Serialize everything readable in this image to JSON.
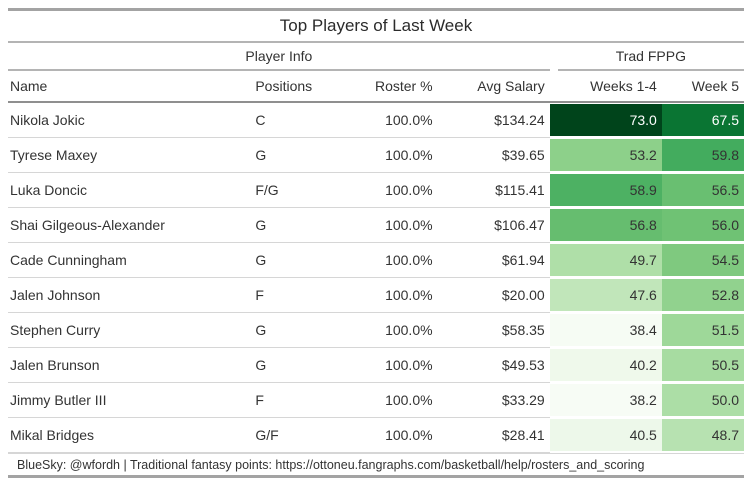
{
  "title": "Top Players of Last Week",
  "spanners": {
    "player_info": "Player Info",
    "trad_fppg": "Trad FPPG"
  },
  "columns": {
    "name": "Name",
    "positions": "Positions",
    "roster_pct": "Roster %",
    "avg_salary": "Avg Salary",
    "weeks_1_4": "Weeks 1-4",
    "week_5": "Week 5"
  },
  "rows": [
    {
      "name": "Nikola Jokic",
      "positions": "C",
      "roster_pct": "100.0%",
      "avg_salary": "$134.24",
      "weeks_1_4": "73.0",
      "week_5": "67.5",
      "weeks_1_4_bg": "#00441b",
      "weeks_1_4_fg": "#ffffff",
      "week_5_bg": "#0a7533",
      "week_5_fg": "#ffffff"
    },
    {
      "name": "Tyrese Maxey",
      "positions": "G",
      "roster_pct": "100.0%",
      "avg_salary": "$39.65",
      "weeks_1_4": "53.2",
      "week_5": "59.8",
      "weeks_1_4_bg": "#8dd08a",
      "weeks_1_4_fg": "#333333",
      "week_5_bg": "#43ac5e",
      "week_5_fg": "#333333"
    },
    {
      "name": "Luka Doncic",
      "positions": "F/G",
      "roster_pct": "100.0%",
      "avg_salary": "$115.41",
      "weeks_1_4": "58.9",
      "week_5": "56.5",
      "weeks_1_4_bg": "#4db163",
      "weeks_1_4_fg": "#333333",
      "week_5_bg": "#69bf71",
      "week_5_fg": "#333333"
    },
    {
      "name": "Shai Gilgeous-Alexander",
      "positions": "G",
      "roster_pct": "100.0%",
      "avg_salary": "$106.47",
      "weeks_1_4": "56.8",
      "week_5": "56.0",
      "weeks_1_4_bg": "#66bd6f",
      "weeks_1_4_fg": "#333333",
      "week_5_bg": "#6fc274",
      "week_5_fg": "#333333"
    },
    {
      "name": "Cade Cunningham",
      "positions": "G",
      "roster_pct": "100.0%",
      "avg_salary": "$61.94",
      "weeks_1_4": "49.7",
      "week_5": "54.5",
      "weeks_1_4_bg": "#afdfa8",
      "weeks_1_4_fg": "#333333",
      "week_5_bg": "#7fc97f",
      "week_5_fg": "#333333"
    },
    {
      "name": "Jalen Johnson",
      "positions": "F",
      "roster_pct": "100.0%",
      "avg_salary": "$20.00",
      "weeks_1_4": "47.6",
      "week_5": "52.8",
      "weeks_1_4_bg": "#c1e6ba",
      "weeks_1_4_fg": "#333333",
      "week_5_bg": "#91d28e",
      "week_5_fg": "#333333"
    },
    {
      "name": "Stephen Curry",
      "positions": "G",
      "roster_pct": "100.0%",
      "avg_salary": "$58.35",
      "weeks_1_4": "38.4",
      "week_5": "51.5",
      "weeks_1_4_bg": "#f6fcf4",
      "weeks_1_4_fg": "#333333",
      "week_5_bg": "#9ed899",
      "week_5_fg": "#333333"
    },
    {
      "name": "Jalen Brunson",
      "positions": "G",
      "roster_pct": "100.0%",
      "avg_salary": "$49.53",
      "weeks_1_4": "40.2",
      "week_5": "50.5",
      "weeks_1_4_bg": "#eff9eb",
      "weeks_1_4_fg": "#333333",
      "week_5_bg": "#a7dca1",
      "week_5_fg": "#333333"
    },
    {
      "name": "Jimmy Butler III",
      "positions": "F",
      "roster_pct": "100.0%",
      "avg_salary": "$33.29",
      "weeks_1_4": "38.2",
      "week_5": "50.0",
      "weeks_1_4_bg": "#f7fcf5",
      "weeks_1_4_fg": "#333333",
      "week_5_bg": "#acdea6",
      "week_5_fg": "#333333"
    },
    {
      "name": "Mikal Bridges",
      "positions": "G/F",
      "roster_pct": "100.0%",
      "avg_salary": "$28.41",
      "weeks_1_4": "40.5",
      "week_5": "48.7",
      "weeks_1_4_bg": "#edf8ea",
      "weeks_1_4_fg": "#333333",
      "week_5_bg": "#b7e2b1",
      "week_5_fg": "#333333"
    }
  ],
  "footer": "BlueSky: @wfordh | Traditional fantasy points: https://ottoneu.fangraphs.com/basketball/help/rosters_and_scoring",
  "colors": {
    "rule_heavy": "#a3a3a3",
    "rule_medium": "#b4b4b4",
    "rule_header": "#8f8f8f",
    "rule_row": "#d6d6d6",
    "text": "#333333",
    "heat_dark_text": "#ffffff"
  },
  "chart_data": {
    "type": "table",
    "title": "Top Players of Last Week",
    "column_spanners": [
      {
        "label": "Player Info",
        "columns": [
          "Name",
          "Positions",
          "Roster %",
          "Avg Salary"
        ]
      },
      {
        "label": "Trad FPPG",
        "columns": [
          "Weeks 1-4",
          "Week 5"
        ]
      }
    ],
    "columns": [
      "Name",
      "Positions",
      "Roster %",
      "Avg Salary",
      "Weeks 1-4",
      "Week 5"
    ],
    "rows": [
      [
        "Nikola Jokic",
        "C",
        100.0,
        134.24,
        73.0,
        67.5
      ],
      [
        "Tyrese Maxey",
        "G",
        100.0,
        39.65,
        53.2,
        59.8
      ],
      [
        "Luka Doncic",
        "F/G",
        100.0,
        115.41,
        58.9,
        56.5
      ],
      [
        "Shai Gilgeous-Alexander",
        "G",
        100.0,
        106.47,
        56.8,
        56.0
      ],
      [
        "Cade Cunningham",
        "G",
        100.0,
        61.94,
        49.7,
        54.5
      ],
      [
        "Jalen Johnson",
        "F",
        100.0,
        20.0,
        47.6,
        52.8
      ],
      [
        "Stephen Curry",
        "G",
        100.0,
        58.35,
        38.4,
        51.5
      ],
      [
        "Jalen Brunson",
        "G",
        100.0,
        49.53,
        40.2,
        50.5
      ],
      [
        "Jimmy Butler III",
        "F",
        100.0,
        33.29,
        38.2,
        50.0
      ],
      [
        "Mikal Bridges",
        "G/F",
        100.0,
        28.41,
        40.5,
        48.7
      ]
    ],
    "heatmap": {
      "columns": [
        "Weeks 1-4",
        "Week 5"
      ],
      "colormap": "Greens",
      "domain": [
        38.2,
        73.0
      ]
    },
    "footnote": "BlueSky: @wfordh | Traditional fantasy points: https://ottoneu.fangraphs.com/basketball/help/rosters_and_scoring"
  }
}
